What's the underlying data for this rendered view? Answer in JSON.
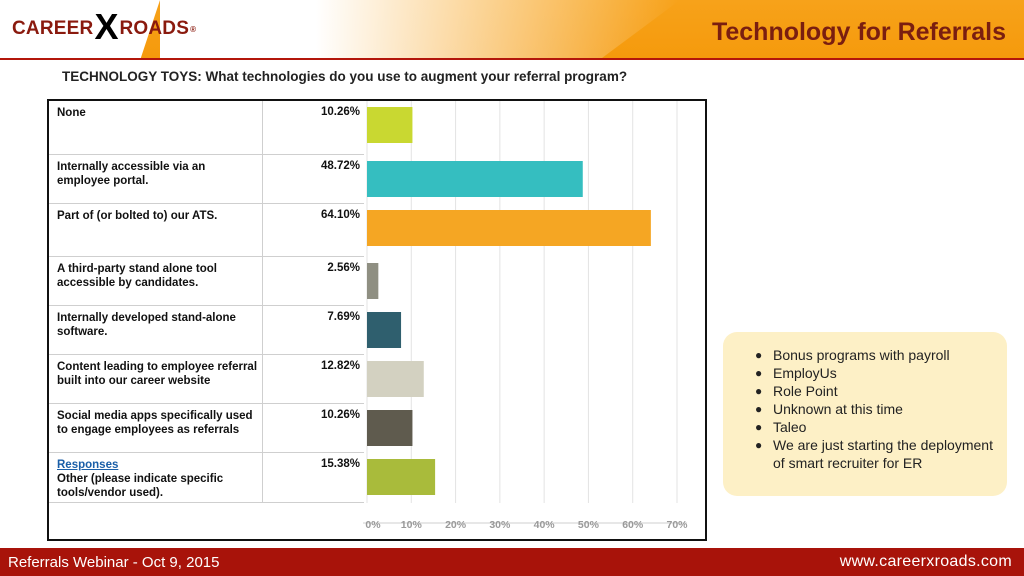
{
  "header": {
    "logo_career": "CAREER",
    "logo_x": "X",
    "logo_roads": "ROADS",
    "logo_reg": "®",
    "title": "Technology for Referrals"
  },
  "question": "TECHNOLOGY TOYS: What technologies do you use to augment your referral program?",
  "rows": [
    {
      "label": "None",
      "pct": "10.26%"
    },
    {
      "label": "Internally accessible via an employee portal.",
      "pct": "48.72%"
    },
    {
      "label": "Part of (or bolted to) our ATS.",
      "pct": "64.10%"
    },
    {
      "label": "A third-party stand alone tool accessible by candidates.",
      "pct": "2.56%"
    },
    {
      "label": "Internally developed stand-alone software.",
      "pct": "7.69%"
    },
    {
      "label": "Content leading to employee referral built into our career website",
      "pct": "12.82%"
    },
    {
      "label": "Social media apps specifically used to engage employees as referrals",
      "pct": "10.26%"
    },
    {
      "link": "Responses",
      "label": "Other (please indicate specific tools/vendor used).",
      "pct": "15.38%"
    }
  ],
  "chart_data": {
    "type": "bar",
    "orientation": "horizontal",
    "title": "TECHNOLOGY TOYS: What technologies do you use to augment your referral program?",
    "categories": [
      "None",
      "Internally accessible via an employee portal.",
      "Part of (or bolted to) our ATS.",
      "A third-party stand alone tool accessible by candidates.",
      "Internally developed stand-alone software.",
      "Content leading to employee referral built into our career website",
      "Social media apps specifically used to engage employees as referrals",
      "Other (please indicate specific tools/vendor used)."
    ],
    "values": [
      10.26,
      48.72,
      64.1,
      2.56,
      7.69,
      12.82,
      10.26,
      15.38
    ],
    "colors": [
      "#c9d831",
      "#35bec0",
      "#f5a623",
      "#8f8f82",
      "#2f5f6e",
      "#d3d1c1",
      "#5f5b4e",
      "#a9bb3b"
    ],
    "x_ticks": [
      "0%",
      "10%",
      "20%",
      "30%",
      "40%",
      "50%",
      "60%",
      "70%"
    ],
    "xlim": [
      0,
      70
    ],
    "grid": true,
    "xlabel": "",
    "ylabel": ""
  },
  "notes": [
    "Bonus programs with payroll",
    "EmployUs",
    "Role Point",
    "Unknown at this time",
    "Taleo",
    "We are just starting the deployment of smart recruiter for ER"
  ],
  "footer": {
    "left": "Referrals Webinar - Oct 9, 2015",
    "right": "www.careerxroads.com"
  },
  "theme": {
    "header_orange": "#f59a0c",
    "footer_red": "#a8130a",
    "title_color": "#7a1e10",
    "note_bg": "#fdf0c6"
  }
}
